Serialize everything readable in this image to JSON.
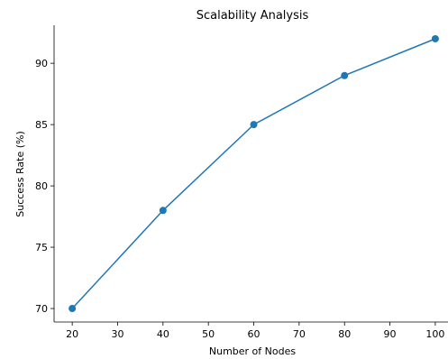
{
  "chart_data": {
    "type": "line",
    "title": "Scalability Analysis",
    "xlabel": "Number of Nodes",
    "ylabel": "Success Rate (%)",
    "x": [
      20,
      40,
      60,
      80,
      100
    ],
    "series": [
      {
        "values": [
          70,
          78,
          85,
          89,
          92
        ],
        "color": "#1f77b4"
      }
    ],
    "xlim": [
      16,
      102.8
    ],
    "ylim": [
      68.9,
      93.1
    ],
    "xticks": [
      20,
      30,
      40,
      50,
      60,
      70,
      80,
      90,
      100
    ],
    "yticks": [
      70,
      75,
      80,
      85,
      90
    ],
    "grid": false,
    "marker": "circle"
  }
}
